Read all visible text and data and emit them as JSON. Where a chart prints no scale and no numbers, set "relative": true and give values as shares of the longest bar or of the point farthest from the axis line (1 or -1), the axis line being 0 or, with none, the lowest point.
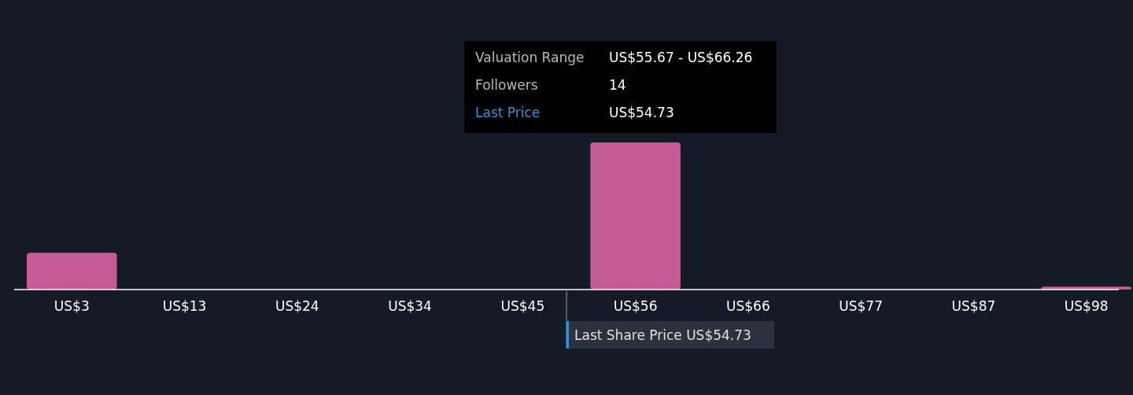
{
  "chart_data": {
    "type": "bar",
    "relative": true,
    "categories": [
      "US$3",
      "US$13",
      "US$24",
      "US$34",
      "US$45",
      "US$56",
      "US$66",
      "US$77",
      "US$87",
      "US$98"
    ],
    "values": [
      0.25,
      0,
      0,
      0,
      0,
      1,
      0,
      0,
      0,
      0.02
    ],
    "color": "#c45b96",
    "annotations": [
      "Valuation Range",
      "US$55.67 - US$66.26",
      "Followers",
      "14",
      "Last Price",
      "US$54.73",
      "Last Share Price US$54.73"
    ],
    "grid": false
  }
}
